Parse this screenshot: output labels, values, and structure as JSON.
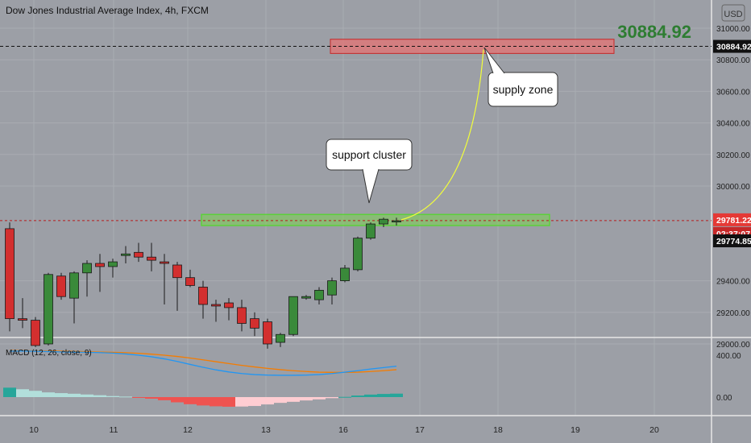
{
  "header": {
    "title": "Dow Jones Industrial Average Index, 4h, FXCM",
    "big_price": "30884.92",
    "currency_button": "USD"
  },
  "indicator": {
    "label": "MACD (12, 26, close, 9)",
    "ticks": [
      "400.00",
      "0.00"
    ]
  },
  "annotations": {
    "support_label": "support cluster",
    "supply_label": "supply zone"
  },
  "price_tags": {
    "target": "30884.92",
    "current": "29781.22",
    "countdown": "02:37:07",
    "crosshair": "29774.85"
  },
  "colors": {
    "background": "#9c9fa6",
    "bull": "#3a8a3a",
    "bear": "#d32f2f",
    "supply_zone": "#e57373",
    "support_zone": "#7bd14f",
    "big_price": "#2e7d32",
    "macd_line": "#2196f3",
    "signal_line": "#f57c00",
    "curve": "#f2ff3a"
  },
  "chart_data": [
    {
      "type": "candlestick",
      "title": "Dow Jones Industrial Average Index, 4h, FXCM",
      "x_ticks": [
        "10",
        "11",
        "12",
        "13",
        "16",
        "17",
        "18",
        "19",
        "20"
      ],
      "y_ticks": [
        31000,
        30800,
        30600,
        30400,
        30200,
        30000,
        29400,
        29200,
        29000
      ],
      "y_tick_labels": [
        "31000.00",
        "30800.00",
        "30600.00",
        "30400.00",
        "30200.00",
        "30000.00",
        "29400.00",
        "29200.00",
        "29000.00"
      ],
      "ylim": [
        28920,
        31120
      ],
      "candles": [
        {
          "o": 29730,
          "h": 29770,
          "l": 29080,
          "c": 29160
        },
        {
          "o": 29160,
          "h": 29290,
          "l": 29100,
          "c": 29150
        },
        {
          "o": 29150,
          "h": 29170,
          "l": 28980,
          "c": 28990
        },
        {
          "o": 29000,
          "h": 29450,
          "l": 28990,
          "c": 29440
        },
        {
          "o": 29430,
          "h": 29450,
          "l": 29280,
          "c": 29300
        },
        {
          "o": 29290,
          "h": 29460,
          "l": 29130,
          "c": 29450
        },
        {
          "o": 29450,
          "h": 29530,
          "l": 29300,
          "c": 29510
        },
        {
          "o": 29510,
          "h": 29570,
          "l": 29330,
          "c": 29490
        },
        {
          "o": 29490,
          "h": 29540,
          "l": 29420,
          "c": 29520
        },
        {
          "o": 29560,
          "h": 29620,
          "l": 29510,
          "c": 29570
        },
        {
          "o": 29580,
          "h": 29640,
          "l": 29520,
          "c": 29550
        },
        {
          "o": 29550,
          "h": 29640,
          "l": 29460,
          "c": 29530
        },
        {
          "o": 29520,
          "h": 29570,
          "l": 29250,
          "c": 29510
        },
        {
          "o": 29500,
          "h": 29520,
          "l": 29210,
          "c": 29420
        },
        {
          "o": 29420,
          "h": 29470,
          "l": 29360,
          "c": 29370
        },
        {
          "o": 29360,
          "h": 29400,
          "l": 29160,
          "c": 29250
        },
        {
          "o": 29250,
          "h": 29280,
          "l": 29140,
          "c": 29240
        },
        {
          "o": 29260,
          "h": 29290,
          "l": 29150,
          "c": 29230
        },
        {
          "o": 29230,
          "h": 29280,
          "l": 29080,
          "c": 29130
        },
        {
          "o": 29160,
          "h": 29200,
          "l": 29050,
          "c": 29100
        },
        {
          "o": 29140,
          "h": 29160,
          "l": 28970,
          "c": 29000
        },
        {
          "o": 29010,
          "h": 29070,
          "l": 28980,
          "c": 29060
        },
        {
          "o": 29060,
          "h": 29300,
          "l": 29050,
          "c": 29300
        },
        {
          "o": 29290,
          "h": 29310,
          "l": 29280,
          "c": 29300
        },
        {
          "o": 29280,
          "h": 29360,
          "l": 29250,
          "c": 29340
        },
        {
          "o": 29310,
          "h": 29420,
          "l": 29250,
          "c": 29400
        },
        {
          "o": 29400,
          "h": 29500,
          "l": 29390,
          "c": 29480
        },
        {
          "o": 29470,
          "h": 29680,
          "l": 29460,
          "c": 29670
        },
        {
          "o": 29670,
          "h": 29770,
          "l": 29660,
          "c": 29760
        },
        {
          "o": 29760,
          "h": 29800,
          "l": 29740,
          "c": 29790
        },
        {
          "o": 29780,
          "h": 29800,
          "l": 29750,
          "c": 29780
        }
      ],
      "supply_zone": {
        "low": 30840,
        "high": 30930
      },
      "support_zone": {
        "low": 29750,
        "high": 29820
      },
      "target_level": 30884.92,
      "current_level": 29781.22
    },
    {
      "type": "line+histogram",
      "title": "MACD (12, 26, close, 9)",
      "y_ticks": [
        400,
        0
      ],
      "ylim": [
        -300,
        650
      ],
      "series": [
        {
          "role": "macd",
          "values": [
            440,
            440,
            438,
            435,
            432,
            430,
            428,
            425,
            420,
            412,
            400,
            385,
            365,
            340,
            312,
            285,
            260,
            240,
            225,
            215,
            210,
            208,
            208,
            210,
            215,
            225,
            238,
            252,
            268,
            282,
            295
          ]
        },
        {
          "role": "signal",
          "values": [
            445,
            443,
            441,
            440,
            438,
            436,
            433,
            430,
            428,
            424,
            418,
            410,
            400,
            388,
            373,
            356,
            338,
            320,
            303,
            288,
            274,
            262,
            252,
            244,
            238,
            236,
            236,
            238,
            244,
            252,
            262
          ]
        },
        {
          "role": "histogram",
          "values": [
            90,
            75,
            60,
            45,
            38,
            32,
            25,
            18,
            10,
            5,
            -2,
            -15,
            -30,
            -50,
            -68,
            -80,
            -88,
            -92,
            -90,
            -85,
            -70,
            -55,
            -45,
            -32,
            -22,
            -10,
            2,
            15,
            24,
            30,
            33
          ]
        }
      ]
    }
  ]
}
